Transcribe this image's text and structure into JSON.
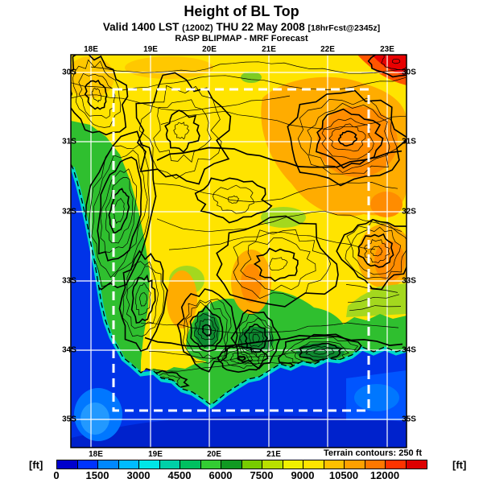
{
  "header": {
    "title": "Height of BL Top",
    "valid_prefix": "Valid 1400 LST",
    "valid_zulu": "(1200Z)",
    "valid_date": "THU 22 May 2008",
    "fcst_tag": "[18hrFcst@2345z]",
    "model_line": "RASP BLIPMAP - MRF Forecast"
  },
  "map": {
    "top_lon_labels": [
      "18E",
      "19E",
      "20E",
      "21E",
      "22E",
      "23E"
    ],
    "bottom_lon_labels": [
      "18E",
      "19E",
      "20E",
      "21E"
    ],
    "left_lat_labels": [
      "30S",
      "31S",
      "32S",
      "33S",
      "34S",
      "35S"
    ],
    "right_lat_labels": [
      "30S",
      "31S",
      "32S",
      "33S",
      "34S",
      "35S"
    ],
    "terrain_note": "Terrain contours: 250 ft"
  },
  "colorbar": {
    "unit_left": "[ft]",
    "unit_right": "[ft]",
    "tick_labels": [
      "0",
      "1500",
      "3000",
      "4500",
      "6000",
      "7500",
      "9000",
      "10500",
      "12000"
    ],
    "segment_step_ft": 750,
    "segment_colors": [
      "#0000CD",
      "#0033FF",
      "#0088FF",
      "#00BBFF",
      "#00E6E6",
      "#00D0A8",
      "#00C060",
      "#33CC33",
      "#119922",
      "#77CC00",
      "#B8E000",
      "#F0F000",
      "#FFE400",
      "#FFC000",
      "#FFA000",
      "#FF7700",
      "#FF3300",
      "#DD0000"
    ]
  },
  "colors": {
    "ocean": "#0033E8",
    "ocean_deep": "#0022CC",
    "ocean_shelf": "#0055FF",
    "ocean_light": "#0077FF",
    "ocean_lighter": "#2299FF",
    "coast_fringe": "#00D8C8",
    "land_low": "#FFE400",
    "warm_gold": "#FFC800",
    "green": "#2FBF2F",
    "green_dark": "#0E8A30",
    "green_light": "#A4D81E",
    "green_mid": "#7FCC22",
    "orange": "#FFAC00",
    "orange_deep": "#FF8C00",
    "red": "#E80000",
    "red_fringe": "#FF5500",
    "contour": "#000000",
    "grid": "#FFFFFF"
  },
  "chart_data": {
    "type": "heatmap",
    "title": "Height of BL Top",
    "units": "ft",
    "fill_levels_ft": {
      "min": 0,
      "max": 13500,
      "step": 750
    },
    "colorbar_ticks_ft": [
      0,
      1500,
      3000,
      4500,
      6000,
      7500,
      9000,
      10500,
      12000
    ],
    "terrain_contour_interval_ft": 250,
    "lon_ticks": [
      "18E",
      "19E",
      "20E",
      "21E",
      "22E",
      "23E"
    ],
    "lat_ticks": [
      "30S",
      "31S",
      "32S",
      "33S",
      "34S",
      "35S"
    ],
    "description": "Boundary-layer top height contour map over the Western Cape, South Africa; ocean ~0-2250 ft (blues), coastal mountains 4500-6750 ft (greens), interior plateau ~8250-9750 ft (yellow-orange), NE interior to ~12750 ft (red)."
  }
}
